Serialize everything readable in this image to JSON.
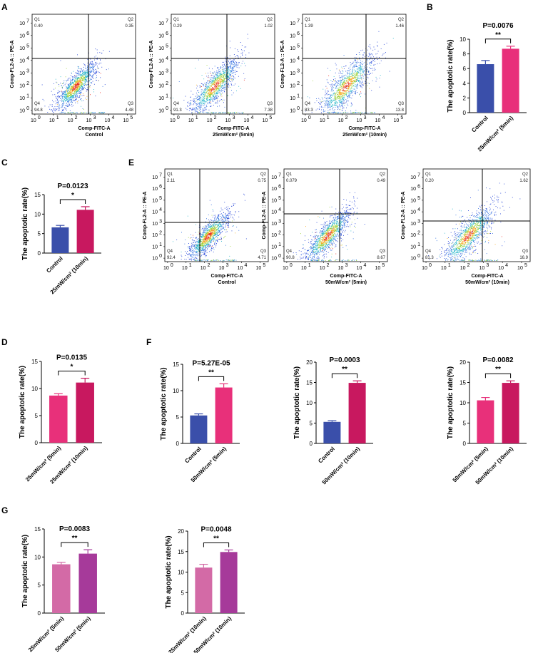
{
  "panel_labels": {
    "A": "A",
    "B": "B",
    "C": "C",
    "D": "D",
    "E": "E",
    "F": "F",
    "G": "G"
  },
  "chart_data": [
    {
      "type": "scatter",
      "title": "Control",
      "xlabel": "Comp-FITC-A",
      "ylabel": "Comp-FL2-A :: PE-A",
      "quadrants": {
        "Q1": {
          "name": "Q1",
          "value": "0.40"
        },
        "Q2": {
          "name": "Q2",
          "value": "0.35"
        },
        "Q3": {
          "name": "Q3",
          "value": "4.48"
        },
        "Q4": {
          "name": "Q4",
          "value": "94.8"
        }
      },
      "xticks": [
        "10",
        "10",
        "10",
        "10",
        "10",
        "10"
      ],
      "xexp": [
        "0",
        "1",
        "2",
        "3",
        "4",
        "5"
      ],
      "yticks": [
        "10",
        "10",
        "10",
        "10",
        "10",
        "10",
        "10",
        "10"
      ],
      "yexp": [
        "0",
        "1",
        "2",
        "3",
        "4",
        "5",
        "6",
        "7"
      ]
    },
    {
      "type": "scatter",
      "title": "25mW/cm² (5min)",
      "xlabel": "Comp-FITC-A",
      "ylabel": "Comp-FL2-A :: PE-A",
      "quadrants": {
        "Q1": {
          "name": "Q1",
          "value": "0.29"
        },
        "Q2": {
          "name": "Q2",
          "value": "1.02"
        },
        "Q3": {
          "name": "Q3",
          "value": "7.38"
        },
        "Q4": {
          "name": "Q4",
          "value": "91.3"
        }
      },
      "xticks": [
        "10",
        "10",
        "10",
        "10",
        "10",
        "10"
      ],
      "xexp": [
        "0",
        "1",
        "2",
        "3",
        "4",
        "5"
      ],
      "yticks": [
        "10",
        "10",
        "10",
        "10",
        "10",
        "10",
        "10",
        "10"
      ],
      "yexp": [
        "0",
        "1",
        "2",
        "3",
        "4",
        "5",
        "6",
        "7"
      ]
    },
    {
      "type": "scatter",
      "title": "25mW/cm² (10min)",
      "xlabel": "Comp-FITC-A",
      "ylabel": "Comp-FL2-A :: PE-A",
      "quadrants": {
        "Q1": {
          "name": "Q1",
          "value": "1.39"
        },
        "Q2": {
          "name": "Q2",
          "value": "1.46"
        },
        "Q3": {
          "name": "Q3",
          "value": "13.8"
        },
        "Q4": {
          "name": "Q4",
          "value": "83.3"
        }
      },
      "xticks": [
        "10",
        "10",
        "10",
        "10",
        "10",
        "10"
      ],
      "xexp": [
        "0",
        "1",
        "2",
        "3",
        "4",
        "5"
      ],
      "yticks": [
        "10",
        "10",
        "10",
        "10",
        "10",
        "10",
        "10",
        "10"
      ],
      "yexp": [
        "0",
        "1",
        "2",
        "3",
        "4",
        "5",
        "6",
        "7"
      ]
    },
    {
      "type": "scatter",
      "title": "Control",
      "xlabel": "Comp-FITC-A",
      "ylabel": "Comp-FL2-A :: PE-A",
      "quadrants": {
        "Q1": {
          "name": "Q1",
          "value": "2.11"
        },
        "Q2": {
          "name": "Q2",
          "value": "0.75"
        },
        "Q3": {
          "name": "Q3",
          "value": "4.71"
        },
        "Q4": {
          "name": "Q4",
          "value": "92.4"
        }
      },
      "xticks": [
        "10",
        "10",
        "10",
        "10",
        "10",
        "10"
      ],
      "xexp": [
        "0",
        "1",
        "2",
        "3",
        "4",
        "5"
      ],
      "yticks": [
        "10",
        "10",
        "10",
        "10",
        "10",
        "10",
        "10",
        "10"
      ],
      "yexp": [
        "0",
        "1",
        "2",
        "3",
        "4",
        "5",
        "6",
        "7"
      ]
    },
    {
      "type": "scatter",
      "title": "50mW/cm² (5min)",
      "xlabel": "Comp-FITC-A",
      "ylabel": "Comp-FL2-A :: PE-A",
      "quadrants": {
        "Q1": {
          "name": "Q1",
          "value": "0.079"
        },
        "Q2": {
          "name": "Q2",
          "value": "0.49"
        },
        "Q3": {
          "name": "Q3",
          "value": "8.67"
        },
        "Q4": {
          "name": "Q4",
          "value": "90.8"
        }
      },
      "xticks": [
        "10",
        "10",
        "10",
        "10",
        "10",
        "10"
      ],
      "xexp": [
        "0",
        "1",
        "2",
        "3",
        "4",
        "5"
      ],
      "yticks": [
        "10",
        "10",
        "10",
        "10",
        "10",
        "10",
        "10",
        "10"
      ],
      "yexp": [
        "0",
        "1",
        "2",
        "3",
        "4",
        "5",
        "6",
        "7"
      ]
    },
    {
      "type": "scatter",
      "title": "50mW/cm² (10min)",
      "xlabel": "Comp-FITC-A",
      "ylabel": "Comp-FL2-A :: PE-A",
      "quadrants": {
        "Q1": {
          "name": "Q1",
          "value": "0.20"
        },
        "Q2": {
          "name": "Q2",
          "value": "1.62"
        },
        "Q3": {
          "name": "Q3",
          "value": "16.9"
        },
        "Q4": {
          "name": "Q4",
          "value": "81.3"
        }
      },
      "xticks": [
        "10",
        "10",
        "10",
        "10",
        "10",
        "10"
      ],
      "xexp": [
        "0",
        "1",
        "2",
        "3",
        "4",
        "5"
      ],
      "yticks": [
        "10",
        "10",
        "10",
        "10",
        "10",
        "10",
        "10",
        "10"
      ],
      "yexp": [
        "0",
        "1",
        "2",
        "3",
        "4",
        "5",
        "6",
        "7"
      ]
    },
    {
      "type": "bar",
      "title": "P=0.0076",
      "sig": "**",
      "ylabel": "The apoptotic rate(%)",
      "categories": [
        "Control",
        "25mW/cm² (5min)"
      ],
      "values": [
        6.6,
        8.7
      ],
      "errors": [
        0.5,
        0.35
      ],
      "colors": [
        "#3a4faa",
        "#e8307a"
      ],
      "ylim": [
        0,
        10
      ],
      "yticks": [
        "0",
        "2",
        "4",
        "6",
        "8",
        "10"
      ]
    },
    {
      "type": "bar",
      "title": "P=0.0123",
      "sig": "*",
      "ylabel": "The apoptotic rate(%)",
      "categories": [
        "Control",
        "25mW/cm² (10min)"
      ],
      "values": [
        6.6,
        11.1
      ],
      "errors": [
        0.5,
        0.8
      ],
      "colors": [
        "#3a4faa",
        "#c8185f"
      ],
      "ylim": [
        0,
        15
      ],
      "yticks": [
        "0",
        "5",
        "10",
        "15"
      ]
    },
    {
      "type": "bar",
      "title": "P=0.0135",
      "sig": "*",
      "ylabel": "The apoptotic rate(%)",
      "categories": [
        "25mW/cm² (5min)",
        "25mW/cm² (10min)"
      ],
      "values": [
        8.7,
        11.1
      ],
      "errors": [
        0.35,
        0.8
      ],
      "colors": [
        "#e8307a",
        "#c8185f"
      ],
      "ylim": [
        0,
        15
      ],
      "yticks": [
        "0",
        "5",
        "10",
        "15"
      ]
    },
    {
      "type": "bar",
      "title": "P=5.27E-05",
      "sig": "**",
      "ylabel": "The apoptotic rate(%)",
      "categories": [
        "Control",
        "50mW/cm² (5min)"
      ],
      "values": [
        5.3,
        10.6
      ],
      "errors": [
        0.3,
        0.7
      ],
      "colors": [
        "#3a4faa",
        "#e8307a"
      ],
      "ylim": [
        0,
        15
      ],
      "yticks": [
        "0",
        "5",
        "10",
        "15"
      ]
    },
    {
      "type": "bar",
      "title": "P=0.0003",
      "sig": "**",
      "ylabel": "The apoptotic rate(%)",
      "categories": [
        "Control",
        "50mW/cm² (10min)"
      ],
      "values": [
        5.3,
        14.9
      ],
      "errors": [
        0.3,
        0.5
      ],
      "colors": [
        "#3a4faa",
        "#c8185f"
      ],
      "ylim": [
        0,
        20
      ],
      "yticks": [
        "0",
        "5",
        "10",
        "15",
        "20"
      ]
    },
    {
      "type": "bar",
      "title": "P=0.0082",
      "sig": "**",
      "ylabel": "The apoptotic rate(%)",
      "categories": [
        "50mW/cm² (5min)",
        "50mW/cm² (10min)"
      ],
      "values": [
        10.6,
        14.9
      ],
      "errors": [
        0.7,
        0.5
      ],
      "colors": [
        "#e8307a",
        "#c8185f"
      ],
      "ylim": [
        0,
        20
      ],
      "yticks": [
        "0",
        "5",
        "10",
        "15",
        "20"
      ]
    },
    {
      "type": "bar",
      "title": "P=0.0083",
      "sig": "**",
      "ylabel": "The apoptotic rate(%)",
      "categories": [
        "25mW/cm² (5min)",
        "50mW/cm² (5min)"
      ],
      "values": [
        8.7,
        10.6
      ],
      "errors": [
        0.35,
        0.7
      ],
      "colors": [
        "#d36aa6",
        "#a63a9a"
      ],
      "ylim": [
        0,
        15
      ],
      "yticks": [
        "0",
        "5",
        "10",
        "15"
      ]
    },
    {
      "type": "bar",
      "title": "P=0.0048",
      "sig": "**",
      "ylabel": "The apoptotic rate(%)",
      "categories": [
        "25mW/cm² (10min)",
        "50mW/cm² (10min)"
      ],
      "values": [
        11.1,
        14.9
      ],
      "errors": [
        0.8,
        0.5
      ],
      "colors": [
        "#d36aa6",
        "#a63a9a"
      ],
      "ylim": [
        0,
        20
      ],
      "yticks": [
        "0",
        "5",
        "10",
        "15",
        "20"
      ]
    }
  ]
}
